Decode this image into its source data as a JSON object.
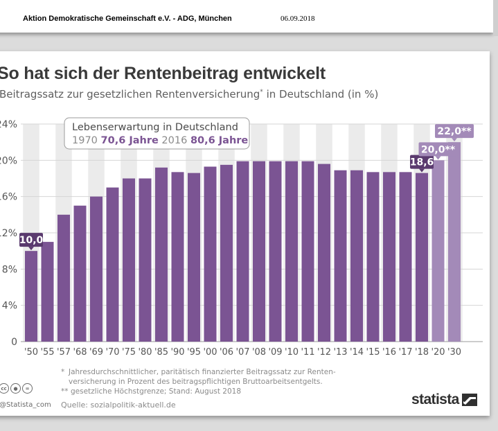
{
  "header": {
    "source": "Aktion Demokratische Gemeinschaft e.V. - ADG, München",
    "date": "06.09.2018"
  },
  "chart_data": {
    "type": "bar",
    "title": "So hat sich der Rentenbeitrag entwickelt",
    "subtitle": "Beitragssatz zur gesetzlichen Rentenversicherung",
    "subtitle_mark": "*",
    "subtitle_suffix": "in Deutschland (in %)",
    "categories": [
      "'50",
      "'55",
      "'57",
      "'68",
      "'69",
      "'70",
      "'75",
      "'80",
      "'85",
      "'90",
      "'95",
      "'00",
      "'06",
      "'07",
      "'08",
      "'09",
      "'10",
      "'11",
      "'12",
      "'13",
      "'14",
      "'15",
      "'16",
      "'17",
      "'18",
      "'20",
      "'30"
    ],
    "values": [
      10.0,
      11.0,
      14.0,
      15.0,
      16.0,
      17.0,
      18.0,
      18.0,
      19.2,
      18.7,
      18.6,
      19.3,
      19.5,
      19.9,
      19.9,
      19.9,
      19.9,
      19.9,
      19.6,
      18.9,
      18.9,
      18.7,
      18.7,
      18.7,
      18.6,
      20.0,
      22.0
    ],
    "highlighted_labels": [
      {
        "index": 0,
        "text": "10,0"
      },
      {
        "index": 24,
        "text": "18,6"
      },
      {
        "index": 25,
        "text": "20,0**"
      },
      {
        "index": 26,
        "text": "22,0**"
      }
    ],
    "projected_indices": [
      25,
      26
    ],
    "yticks": [
      0,
      4,
      8,
      12,
      16,
      20,
      24
    ],
    "ytick_labels": [
      "0",
      "4%",
      "8%",
      "12%",
      "16%",
      "20%",
      "24%"
    ],
    "ylim": [
      0,
      24
    ],
    "grid": "alternating column bands",
    "colors": {
      "bar": "#7b5493",
      "bar_projected": "#a38ab8",
      "label_box_dark": "#5a3a6e",
      "label_box_light": "#a38ab8",
      "band": "#ebebeb"
    },
    "info_box": {
      "title": "Lebenserwartung in Deutschland",
      "year1": "1970",
      "value1": "70,6 Jahre",
      "year2": "2016",
      "value2": "80,6 Jahre"
    }
  },
  "footnotes": [
    {
      "mark": "*",
      "text": "Jahresdurchschnittlicher, paritätisch finanzierter Beitragssatz zur Renten-",
      "cont": "versicherung in Prozent des beitragspflichtigen Bruttoarbeitsentgelts."
    },
    {
      "mark": "**",
      "text": "gesetzliche Höchstgrenze; Stand: August 2018",
      "cont": ""
    }
  ],
  "source": "Quelle: sozialpolitik-aktuell.de",
  "credit": "@Statista_com",
  "cc_icons": [
    "cc-icon",
    "by-icon",
    "nd-icon"
  ],
  "brand": "statista"
}
